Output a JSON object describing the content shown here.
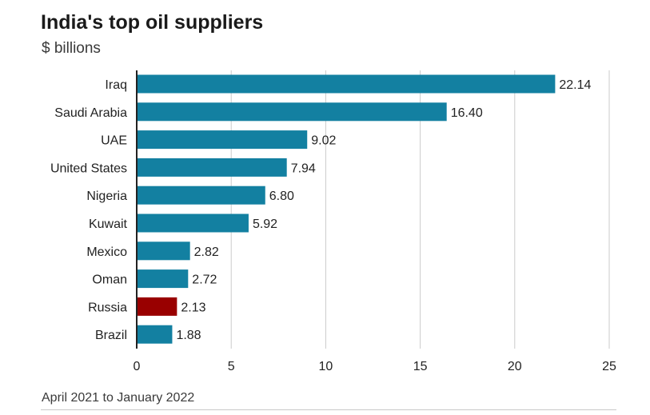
{
  "title": "India's top oil suppliers",
  "subtitle": "$ billions",
  "footnote": "April 2021 to January 2022",
  "colors": {
    "bar": "#1380a1",
    "highlight": "#990000",
    "grid": "#cbcbcb",
    "axis": "#222222",
    "text": "#222222"
  },
  "chart_data": {
    "type": "bar",
    "orientation": "horizontal",
    "categories": [
      "Iraq",
      "Saudi Arabia",
      "UAE",
      "United States",
      "Nigeria",
      "Kuwait",
      "Mexico",
      "Oman",
      "Russia",
      "Brazil"
    ],
    "values": [
      22.14,
      16.4,
      9.02,
      7.94,
      6.8,
      5.92,
      2.82,
      2.72,
      2.13,
      1.88
    ],
    "value_labels": [
      "22.14",
      "16.40",
      "9.02",
      "7.94",
      "6.80",
      "5.92",
      "2.82",
      "2.72",
      "2.13",
      "1.88"
    ],
    "highlight": "Russia",
    "xlim": [
      0,
      25
    ],
    "xticks": [
      0,
      5,
      10,
      15,
      20,
      25
    ],
    "xlabel": "",
    "ylabel": "",
    "grid": true
  }
}
